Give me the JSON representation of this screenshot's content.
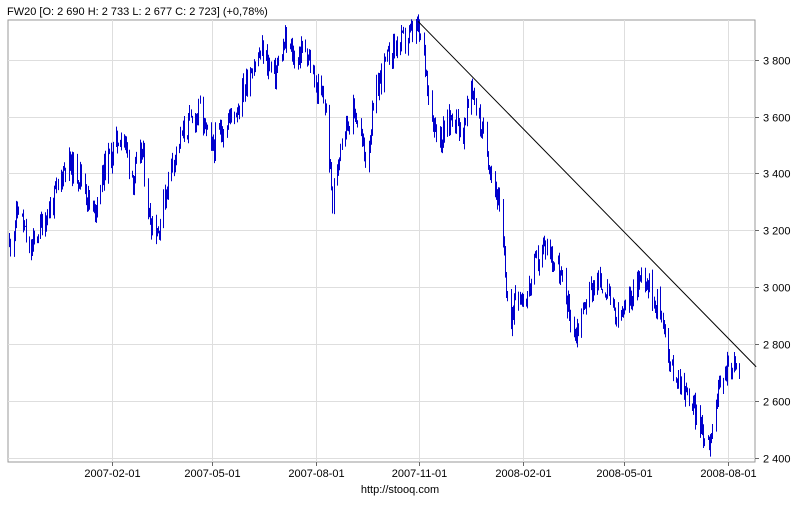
{
  "chart_data": {
    "type": "ohlc",
    "title": "FW20 [O: 2 690  H: 2 733  L: 2 677  C: 2 723] (+0,78%)",
    "source": "http://stooq.com",
    "x_tick_labels": [
      "2007-02-01",
      "2007-05-01",
      "2007-08-01",
      "2007-11-01",
      "2008-02-01",
      "2008-05-01",
      "2008-08-01"
    ],
    "x_tick_values": [
      "2007-02-01",
      "2007-05-01",
      "2007-08-01",
      "2007-11-01",
      "2008-02-01",
      "2008-05-01",
      "2008-08-01"
    ],
    "x_range": [
      "2006-11-01",
      "2008-08-25"
    ],
    "y_tick_labels": [
      "2 400",
      "2 600",
      "2 800",
      "3 000",
      "3 200",
      "3 400",
      "3 600",
      "3 800"
    ],
    "y_tick_values": [
      2400,
      2600,
      2800,
      3000,
      3200,
      3400,
      3600,
      3800
    ],
    "ylim": [
      2385,
      3940
    ],
    "grid": true,
    "series_color": "#0000cc",
    "trendline": {
      "color": "#000000",
      "points": [
        [
          "2007-10-31",
          3935
        ],
        [
          "2008-08-26",
          2720
        ]
      ]
    },
    "ohlc_anchors": [
      [
        "2006-11-02",
        3150
      ],
      [
        "2006-11-10",
        3280
      ],
      [
        "2006-11-20",
        3120
      ],
      [
        "2006-12-01",
        3230
      ],
      [
        "2006-12-12",
        3310
      ],
      [
        "2006-12-22",
        3440
      ],
      [
        "2007-01-05",
        3390
      ],
      [
        "2007-01-15",
        3250
      ],
      [
        "2007-01-25",
        3420
      ],
      [
        "2007-02-02",
        3480
      ],
      [
        "2007-02-10",
        3550
      ],
      [
        "2007-02-20",
        3380
      ],
      [
        "2007-02-28",
        3480
      ],
      [
        "2007-03-06",
        3250
      ],
      [
        "2007-03-14",
        3200
      ],
      [
        "2007-03-26",
        3440
      ],
      [
        "2007-04-06",
        3550
      ],
      [
        "2007-04-20",
        3620
      ],
      [
        "2007-04-30",
        3480
      ],
      [
        "2007-05-10",
        3560
      ],
      [
        "2007-05-24",
        3640
      ],
      [
        "2007-06-05",
        3780
      ],
      [
        "2007-06-15",
        3830
      ],
      [
        "2007-06-25",
        3740
      ],
      [
        "2007-07-05",
        3860
      ],
      [
        "2007-07-14",
        3800
      ],
      [
        "2007-07-23",
        3850
      ],
      [
        "2007-08-01",
        3700
      ],
      [
        "2007-08-09",
        3650
      ],
      [
        "2007-08-16",
        3300
      ],
      [
        "2007-08-24",
        3550
      ],
      [
        "2007-09-05",
        3620
      ],
      [
        "2007-09-14",
        3450
      ],
      [
        "2007-09-26",
        3730
      ],
      [
        "2007-10-08",
        3840
      ],
      [
        "2007-10-20",
        3870
      ],
      [
        "2007-10-30",
        3910
      ],
      [
        "2007-11-05",
        3820
      ],
      [
        "2007-11-12",
        3600
      ],
      [
        "2007-11-20",
        3520
      ],
      [
        "2007-12-01",
        3620
      ],
      [
        "2007-12-10",
        3530
      ],
      [
        "2007-12-17",
        3720
      ],
      [
        "2007-12-25",
        3570
      ],
      [
        "2008-01-03",
        3430
      ],
      [
        "2008-01-10",
        3300
      ],
      [
        "2008-01-16",
        3050
      ],
      [
        "2008-01-21",
        2850
      ],
      [
        "2008-01-25",
        3000
      ],
      [
        "2008-02-03",
        2950
      ],
      [
        "2008-02-12",
        3080
      ],
      [
        "2008-02-21",
        3150
      ],
      [
        "2008-03-02",
        3080
      ],
      [
        "2008-03-11",
        2950
      ],
      [
        "2008-03-18",
        2830
      ],
      [
        "2008-03-27",
        2950
      ],
      [
        "2008-04-04",
        3020
      ],
      [
        "2008-04-14",
        3000
      ],
      [
        "2008-04-24",
        2880
      ],
      [
        "2008-05-02",
        2920
      ],
      [
        "2008-05-12",
        3020
      ],
      [
        "2008-05-19",
        3050
      ],
      [
        "2008-05-26",
        2970
      ],
      [
        "2008-06-04",
        2900
      ],
      [
        "2008-06-10",
        2720
      ],
      [
        "2008-06-18",
        2680
      ],
      [
        "2008-06-26",
        2620
      ],
      [
        "2008-07-03",
        2560
      ],
      [
        "2008-07-10",
        2480
      ],
      [
        "2008-07-15",
        2460
      ],
      [
        "2008-07-20",
        2580
      ],
      [
        "2008-07-26",
        2660
      ],
      [
        "2008-08-01",
        2740
      ],
      [
        "2008-08-06",
        2720
      ],
      [
        "2008-08-11",
        2710
      ]
    ],
    "last_bar": {
      "open": 2690,
      "high": 2733,
      "low": 2677,
      "close": 2723
    }
  }
}
